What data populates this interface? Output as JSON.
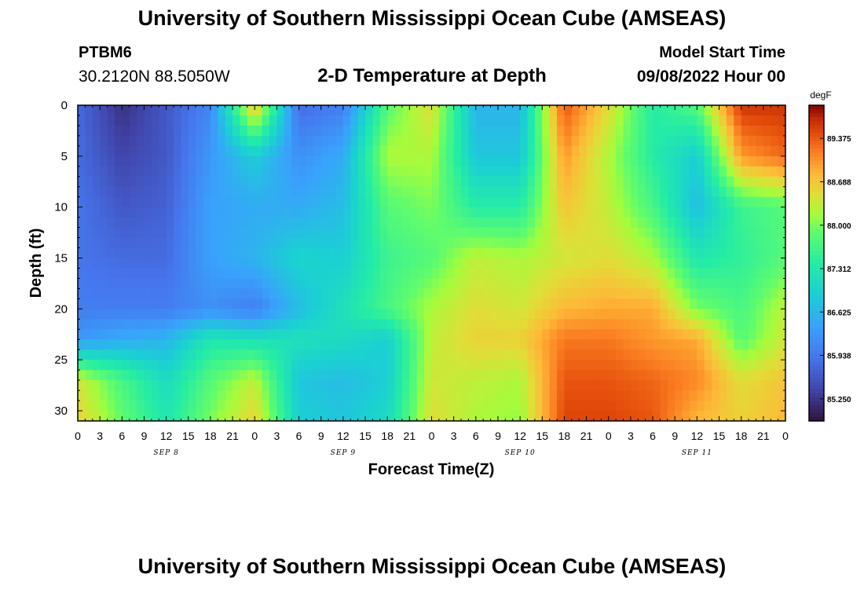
{
  "header": {
    "title": "University of Southern Mississippi Ocean Cube (AMSEAS)",
    "station": "PTBM6",
    "coords": "30.2120N  88.5050W",
    "subtitle": "2-D Temperature at Depth",
    "start_label": "Model Start Time",
    "start_value": "09/08/2022 Hour 00",
    "bottom_title": "University of Southern Mississippi Ocean Cube (AMSEAS)"
  },
  "chart_data": {
    "type": "heatmap",
    "title": "2-D Temperature at Depth",
    "xlabel": "Forecast Time(Z)",
    "ylabel": "Depth (ft)",
    "x_ticks": [
      "0",
      "3",
      "6",
      "9",
      "12",
      "15",
      "18",
      "21",
      "0",
      "3",
      "6",
      "9",
      "12",
      "15",
      "18",
      "21",
      "0",
      "3",
      "6",
      "9",
      "12",
      "15",
      "18",
      "21",
      "0",
      "3",
      "6",
      "9",
      "12",
      "15",
      "18",
      "21",
      "0"
    ],
    "day_labels": [
      "SEP 8",
      "SEP 9",
      "SEP 10",
      "SEP 11"
    ],
    "y_ticks": [
      "0",
      "5",
      "10",
      "15",
      "20",
      "25",
      "30"
    ],
    "ylim": [
      0,
      31
    ],
    "xlim": [
      0,
      96
    ],
    "colorbar": {
      "unit": "degF",
      "ticks": [
        "89.375",
        "88.688",
        "88.000",
        "87.312",
        "86.625",
        "85.938",
        "85.250"
      ],
      "range": [
        84.9,
        89.9
      ]
    },
    "times_h": [
      0,
      6,
      12,
      18,
      24,
      30,
      36,
      42,
      48,
      54,
      60,
      66,
      72,
      78,
      84,
      90,
      96
    ],
    "depths_ft": [
      0,
      5,
      10,
      15,
      20,
      23,
      27,
      31
    ],
    "values_degF": [
      [
        85.8,
        85.2,
        85.6,
        86.1,
        88.8,
        85.8,
        86.0,
        87.8,
        88.5,
        86.6,
        86.6,
        89.4,
        88.5,
        87.4,
        87.8,
        89.6,
        89.6
      ],
      [
        85.8,
        85.4,
        85.6,
        86.3,
        86.9,
        86.2,
        86.5,
        88.2,
        88.2,
        86.8,
        86.8,
        89.0,
        88.2,
        87.4,
        86.9,
        89.0,
        89.3
      ],
      [
        85.9,
        85.6,
        85.7,
        86.4,
        86.5,
        86.5,
        86.7,
        87.8,
        88.0,
        87.4,
        87.4,
        88.7,
        88.3,
        87.7,
        86.7,
        87.6,
        87.8
      ],
      [
        85.9,
        85.8,
        85.8,
        86.4,
        86.6,
        87.0,
        86.9,
        87.6,
        87.8,
        88.3,
        88.2,
        88.4,
        88.5,
        88.2,
        87.3,
        87.5,
        87.8
      ],
      [
        86.0,
        86.0,
        86.0,
        86.2,
        86.0,
        86.7,
        87.2,
        87.7,
        88.2,
        88.5,
        88.4,
        88.8,
        88.9,
        88.9,
        88.0,
        87.7,
        88.3
      ],
      [
        86.3,
        86.5,
        86.6,
        87.3,
        87.2,
        87.2,
        87.1,
        86.9,
        88.3,
        88.6,
        88.6,
        89.2,
        89.2,
        89.0,
        88.9,
        87.8,
        88.4
      ],
      [
        88.4,
        87.7,
        87.1,
        87.8,
        88.3,
        86.8,
        86.7,
        86.9,
        88.4,
        88.3,
        88.2,
        89.4,
        89.4,
        89.3,
        89.1,
        88.5,
        88.7
      ],
      [
        88.6,
        87.9,
        87.3,
        88.0,
        88.6,
        86.9,
        86.8,
        87.1,
        88.5,
        88.2,
        88.1,
        89.5,
        89.5,
        89.4,
        88.8,
        88.6,
        88.8
      ]
    ]
  }
}
